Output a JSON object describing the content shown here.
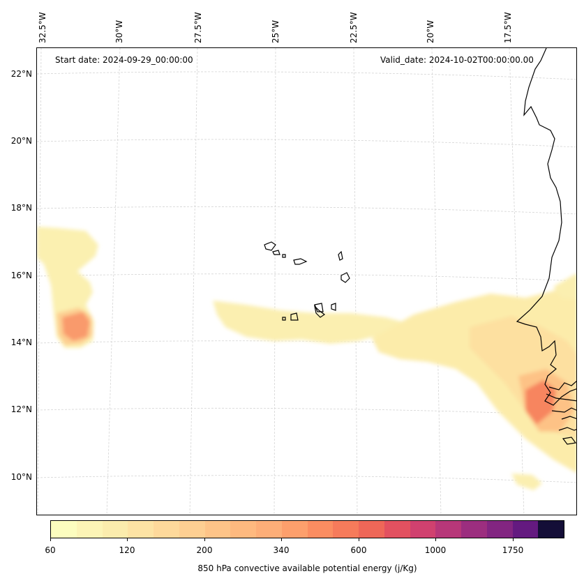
{
  "map": {
    "start_label": "Start date: 2024-09-29_00:00:00",
    "valid_label": "Valid_date: 2024-10-02T00:00:00.00",
    "longitude_labels": [
      "32.5°W",
      "30°W",
      "27.5°W",
      "25°W",
      "22.5°W",
      "20°W",
      "17.5°W"
    ],
    "latitude_labels": [
      "22°N",
      "20°N",
      "18°N",
      "16°N",
      "14°N",
      "12°N",
      "10°N"
    ],
    "field": "850 hPa convective available potential energy",
    "coastline_color": "#000000",
    "gridline_color": "#cccccc"
  },
  "colorbar": {
    "label": "850 hPa convective available potential energy (j/Kg)",
    "tick_labels": [
      "60",
      "120",
      "200",
      "340",
      "600",
      "1000",
      "1750"
    ],
    "colors": [
      "#fcfdbf",
      "#fcf4b6",
      "#fbecad",
      "#fde3a4",
      "#fed99b",
      "#fecf92",
      "#fec488",
      "#feb97f",
      "#fdae78",
      "#fd9f6c",
      "#fb8d61",
      "#f67b5b",
      "#ee6758",
      "#e25160",
      "#d0416f",
      "#b73779",
      "#9c2e7f",
      "#822581",
      "#641a80",
      "#140e37"
    ]
  }
}
